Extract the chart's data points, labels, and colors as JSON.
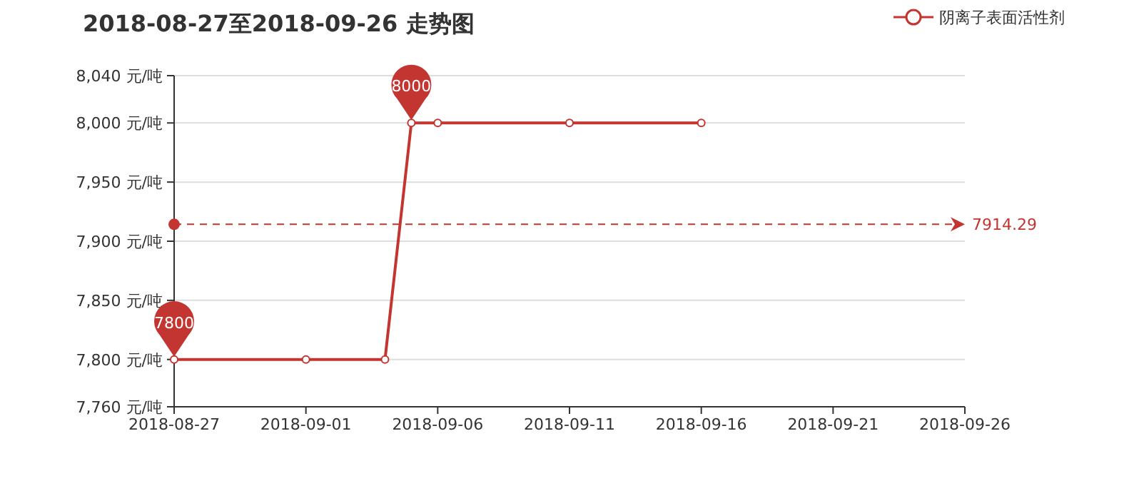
{
  "chart_data": {
    "type": "line",
    "title": "2018-08-27至2018-09-26 走势图",
    "x": [
      "2018-08-27",
      "2018-09-01",
      "2018-09-04",
      "2018-09-05",
      "2018-09-06",
      "2018-09-11",
      "2018-09-16"
    ],
    "series": [
      {
        "name": "阴离子表面活性剂",
        "color": "#c23531",
        "values": [
          7800,
          7800,
          7800,
          8000,
          8000,
          8000,
          8000
        ]
      }
    ],
    "xlim": [
      "2018-08-27",
      "2018-09-26"
    ],
    "xticks": [
      "2018-08-27",
      "2018-09-01",
      "2018-09-06",
      "2018-09-11",
      "2018-09-16",
      "2018-09-21",
      "2018-09-26"
    ],
    "ylim": [
      7760,
      8040
    ],
    "yticks": [
      {
        "value": 7760,
        "label": "7,760 元/吨"
      },
      {
        "value": 7800,
        "label": "7,800 元/吨"
      },
      {
        "value": 7850,
        "label": "7,850 元/吨"
      },
      {
        "value": 7900,
        "label": "7,900 元/吨"
      },
      {
        "value": 7950,
        "label": "7,950 元/吨"
      },
      {
        "value": 8000,
        "label": "8,000 元/吨"
      },
      {
        "value": 8040,
        "label": "8,040 元/吨"
      }
    ],
    "ref_lines": [
      {
        "axis": "y",
        "value": 7914.29,
        "label": "7914.29",
        "color": "#c23531",
        "line_style": "dashed"
      }
    ],
    "annotations": [
      {
        "text": "7800",
        "x": "2018-08-27",
        "y": 7800
      },
      {
        "text": "8000",
        "x": "2018-09-05",
        "y": 8000
      }
    ],
    "grid": "y",
    "legend": "top right",
    "marker": "circle",
    "line_style": "solid"
  }
}
